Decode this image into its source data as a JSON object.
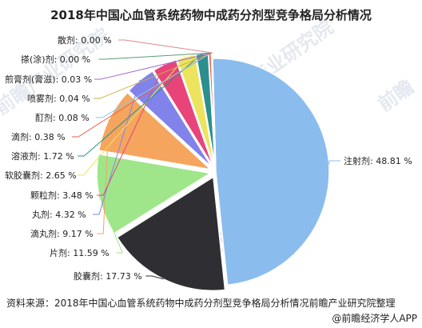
{
  "title": "2018年中国心血管系统药物中成药分剂型竞争格局分析情况",
  "source": "资料来源：2018年中国心血管系统药物中成药分剂型竞争格局分析情况前瞻产业研究院整理",
  "credit": "@前瞻经济学人APP",
  "watermarks": [
    "前瞻产业研究院",
    "前瞻"
  ],
  "chart_data": {
    "type": "pie",
    "title": "2018年中国心血管系统药物中成药分剂型竞争格局分析情况",
    "slices": [
      {
        "label": "注射剂",
        "value": 48.81,
        "text": "注射剂: 48.81 %",
        "color": "#8bbcee"
      },
      {
        "label": "胶囊剂",
        "value": 17.73,
        "text": "胶囊剂: 17.73 %",
        "color": "#2f2f33"
      },
      {
        "label": "片剂",
        "value": 11.59,
        "text": "片剂: 11.59 %",
        "color": "#9fe68b"
      },
      {
        "label": "滴丸剂",
        "value": 9.17,
        "text": "滴丸剂: 9.17 %",
        "color": "#f5a55d"
      },
      {
        "label": "丸剂",
        "value": 4.32,
        "text": "丸剂: 4.32 %",
        "color": "#8183ea"
      },
      {
        "label": "颗粒剂",
        "value": 3.48,
        "text": "颗粒剂: 3.48 %",
        "color": "#e8447a"
      },
      {
        "label": "软胶囊剂",
        "value": 2.65,
        "text": "软胶囊剂: 2.65 %",
        "color": "#ebe45c"
      },
      {
        "label": "溶液剂",
        "value": 1.72,
        "text": "溶液剂: 1.72 %",
        "color": "#2a8f8d"
      },
      {
        "label": "滴剂",
        "value": 0.38,
        "text": "滴剂: 0.38 %",
        "color": "#f0604c"
      },
      {
        "label": "酊剂",
        "value": 0.08,
        "text": "酊剂: 0.08 %",
        "color": "#7fcaf0"
      },
      {
        "label": "喷雾剂",
        "value": 0.04,
        "text": "喷雾剂: 0.04 %",
        "color": "#c7b24a"
      },
      {
        "label": "煎膏剂(膏滋)",
        "value": 0.03,
        "text": "煎膏剂(膏滋): 0.03 %",
        "color": "#a56ad4"
      },
      {
        "label": "搽(涂)剂",
        "value": 0.0,
        "text": "搽(涂)剂: 0.00 %",
        "color": "#5a9e6f"
      },
      {
        "label": "散剂",
        "value": 0.0,
        "text": "散剂: 0.00 %",
        "color": "#d98a8a"
      }
    ]
  }
}
